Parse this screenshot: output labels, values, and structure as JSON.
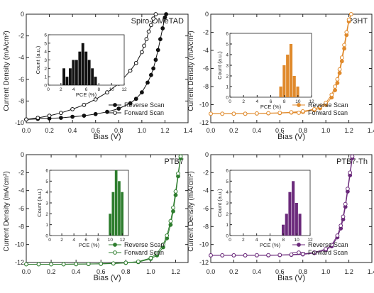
{
  "figure": {
    "panels": [
      {
        "title": "Spiro-OMeTAD",
        "color": "#111111",
        "chart_data": {
          "type": "line",
          "xlabel": "Bias (V)",
          "ylabel": "Current Density (mA/cm²)",
          "xlim": [
            0.0,
            1.4
          ],
          "ylim": [
            -10,
            0
          ],
          "y_inverted": true,
          "x_ticks": [
            "0.0",
            "0.2",
            "0.4",
            "0.6",
            "0.8",
            "1.0",
            "1.2",
            "1.4"
          ],
          "y_ticks": [
            "0",
            "-2",
            "-4",
            "-6",
            "-8",
            "-10"
          ],
          "legend_position": "bottom-right",
          "series": [
            {
              "name": "Reverse Scan",
              "marker": "filled-circle",
              "x": [
                0.0,
                0.1,
                0.2,
                0.3,
                0.4,
                0.5,
                0.6,
                0.7,
                0.8,
                0.9,
                0.95,
                1.0,
                1.05,
                1.08,
                1.1,
                1.12,
                1.14,
                1.16,
                1.18,
                1.2,
                1.21
              ],
              "y": [
                -9.7,
                -9.65,
                -9.6,
                -9.55,
                -9.45,
                -9.35,
                -9.2,
                -9.0,
                -8.7,
                -8.2,
                -7.8,
                -7.2,
                -6.3,
                -5.6,
                -5.0,
                -4.2,
                -3.3,
                -2.3,
                -1.3,
                -0.3,
                0.0
              ]
            },
            {
              "name": "Forward Scan",
              "marker": "open-circle",
              "x": [
                0.0,
                0.1,
                0.2,
                0.3,
                0.4,
                0.5,
                0.6,
                0.7,
                0.8,
                0.9,
                0.95,
                1.0,
                1.02,
                1.04,
                1.06,
                1.08,
                1.1,
                1.12
              ],
              "y": [
                -9.7,
                -9.55,
                -9.35,
                -9.1,
                -8.75,
                -8.35,
                -7.85,
                -7.2,
                -6.4,
                -5.2,
                -4.5,
                -3.5,
                -2.9,
                -2.3,
                -1.6,
                -1.0,
                -0.4,
                0.0
              ]
            }
          ],
          "inset": {
            "type": "bar",
            "xlabel": "PCE (%)",
            "ylabel": "Count (a.u.)",
            "xlim": [
              0,
              12
            ],
            "ylim": [
              0,
              6
            ],
            "x_ticks": [
              "0",
              "2",
              "4",
              "6",
              "8",
              "10",
              "12"
            ],
            "y_ticks": [
              "0",
              "1",
              "2",
              "3",
              "4",
              "5",
              "6"
            ],
            "bar_width": 0.5,
            "bins": [
              2.5,
              3,
              3.5,
              4,
              4.5,
              5,
              5.5,
              6,
              6.5,
              7,
              7.5,
              8
            ],
            "values": [
              2,
              1,
              2,
              3,
              3,
              4,
              5,
              4,
              3,
              2,
              1,
              0
            ]
          }
        }
      },
      {
        "title": "P3HT",
        "color": "#e08a2c",
        "chart_data": {
          "type": "line",
          "xlabel": "Bias (V)",
          "ylabel": "Current Density (mA/cm²)",
          "xlim": [
            0.0,
            1.4
          ],
          "ylim": [
            -12,
            0
          ],
          "y_inverted": true,
          "x_ticks": [
            "0.0",
            "0.2",
            "0.4",
            "0.6",
            "0.8",
            "1.0",
            "1.2",
            "1.4"
          ],
          "y_ticks": [
            "0",
            "-2",
            "-4",
            "-6",
            "-8",
            "-10",
            "-12"
          ],
          "legend_position": "bottom-right",
          "series": [
            {
              "name": "Reverse Scan",
              "marker": "filled-circle",
              "x": [
                0.0,
                0.1,
                0.2,
                0.3,
                0.4,
                0.5,
                0.6,
                0.7,
                0.8,
                0.9,
                0.95,
                1.0,
                1.05,
                1.08,
                1.1,
                1.12,
                1.14,
                1.16,
                1.18,
                1.2,
                1.22
              ],
              "y": [
                -11.0,
                -11.0,
                -11.0,
                -11.0,
                -10.98,
                -10.96,
                -10.93,
                -10.88,
                -10.8,
                -10.6,
                -10.4,
                -10.0,
                -9.2,
                -8.4,
                -7.6,
                -6.5,
                -5.2,
                -3.8,
                -2.3,
                -0.8,
                0.0
              ]
            },
            {
              "name": "Forward Scan",
              "marker": "open-circle",
              "x": [
                0.0,
                0.1,
                0.2,
                0.3,
                0.4,
                0.5,
                0.6,
                0.7,
                0.8,
                0.9,
                0.95,
                1.0,
                1.05,
                1.08,
                1.1,
                1.12,
                1.14,
                1.16,
                1.18,
                1.2,
                1.22
              ],
              "y": [
                -11.0,
                -11.0,
                -11.0,
                -11.0,
                -10.97,
                -10.94,
                -10.9,
                -10.84,
                -10.74,
                -10.5,
                -10.2,
                -9.8,
                -8.9,
                -8.0,
                -7.2,
                -6.1,
                -4.8,
                -3.4,
                -2.0,
                -0.6,
                0.0
              ]
            }
          ],
          "inset": {
            "type": "bar",
            "xlabel": "PCE (%)",
            "ylabel": "Count (a.u.)",
            "xlim": [
              0,
              12
            ],
            "ylim": [
              0,
              6
            ],
            "x_ticks": [
              "0",
              "2",
              "4",
              "6",
              "8",
              "10",
              "12"
            ],
            "y_ticks": [
              "0",
              "1",
              "2",
              "3",
              "4",
              "5",
              "6"
            ],
            "bar_width": 0.5,
            "bins": [
              7.5,
              8,
              8.5,
              9,
              9.5,
              10
            ],
            "values": [
              1,
              3,
              4,
              5,
              2,
              1
            ]
          }
        }
      },
      {
        "title": "PTB7",
        "color": "#2e7d2e",
        "chart_data": {
          "type": "line",
          "xlabel": "Bias (V)",
          "ylabel": "Current Density (mA/cm²)",
          "xlim": [
            0.0,
            1.3
          ],
          "ylim": [
            -12,
            0
          ],
          "y_inverted": true,
          "x_ticks": [
            "0.0",
            "0.2",
            "0.4",
            "0.6",
            "0.8",
            "1.0",
            "1.2"
          ],
          "y_ticks": [
            "0",
            "-2",
            "-4",
            "-6",
            "-8",
            "-10",
            "-12"
          ],
          "legend_position": "bottom-right",
          "series": [
            {
              "name": "Reverse Scan",
              "marker": "filled-circle",
              "x": [
                0.0,
                0.1,
                0.2,
                0.3,
                0.4,
                0.5,
                0.6,
                0.7,
                0.8,
                0.9,
                1.0,
                1.05,
                1.1,
                1.13,
                1.16,
                1.18,
                1.2,
                1.22,
                1.24
              ],
              "y": [
                -12.2,
                -12.2,
                -12.2,
                -12.2,
                -12.18,
                -12.17,
                -12.15,
                -12.12,
                -12.05,
                -11.95,
                -11.6,
                -11.2,
                -10.3,
                -9.3,
                -7.8,
                -6.3,
                -4.5,
                -2.4,
                -0.4
              ]
            },
            {
              "name": "Forward Scan",
              "marker": "open-circle",
              "x": [
                0.0,
                0.1,
                0.2,
                0.3,
                0.4,
                0.5,
                0.6,
                0.7,
                0.8,
                0.9,
                1.0,
                1.05,
                1.1,
                1.13,
                1.16,
                1.18,
                1.2,
                1.22,
                1.24
              ],
              "y": [
                -12.2,
                -12.2,
                -12.2,
                -12.2,
                -12.18,
                -12.16,
                -12.14,
                -12.1,
                -12.02,
                -11.9,
                -11.5,
                -11.0,
                -10.0,
                -9.0,
                -7.4,
                -5.9,
                -4.1,
                -2.1,
                -0.2
              ]
            }
          ],
          "inset": {
            "type": "bar",
            "xlabel": "PCE (%)",
            "ylabel": "Count (a.u.)",
            "xlim": [
              0,
              13
            ],
            "ylim": [
              0,
              6
            ],
            "x_ticks": [
              "0",
              "2",
              "4",
              "6",
              "8",
              "10",
              "12"
            ],
            "y_ticks": [
              "0",
              "1",
              "2",
              "3",
              "4",
              "5",
              "6"
            ],
            "bar_width": 0.5,
            "bins": [
              10,
              10.5,
              11,
              11.5,
              12
            ],
            "values": [
              2,
              4,
              6,
              5,
              4
            ]
          }
        }
      },
      {
        "title": "PTB7-Th",
        "color": "#6b2a7b",
        "chart_data": {
          "type": "line",
          "xlabel": "Bias (V)",
          "ylabel": "Current Density (mA/cm²)",
          "xlim": [
            0.0,
            1.4
          ],
          "ylim": [
            -12,
            0
          ],
          "y_inverted": true,
          "x_ticks": [
            "0.0",
            "0.2",
            "0.4",
            "0.6",
            "0.8",
            "1.0",
            "1.2",
            "1.4"
          ],
          "y_ticks": [
            "0",
            "-2",
            "-4",
            "-6",
            "-8",
            "-10",
            "-12"
          ],
          "legend_position": "bottom-right",
          "series": [
            {
              "name": "Reverse Scan",
              "marker": "filled-circle",
              "x": [
                0.0,
                0.1,
                0.2,
                0.3,
                0.4,
                0.5,
                0.6,
                0.7,
                0.8,
                0.9,
                1.0,
                1.05,
                1.1,
                1.13,
                1.15,
                1.17,
                1.19,
                1.21,
                1.23
              ],
              "y": [
                -11.2,
                -11.2,
                -11.2,
                -11.2,
                -11.2,
                -11.2,
                -11.18,
                -11.15,
                -11.1,
                -10.95,
                -10.6,
                -10.2,
                -9.2,
                -8.2,
                -7.2,
                -5.8,
                -4.1,
                -2.3,
                -0.4
              ]
            },
            {
              "name": "Forward Scan",
              "marker": "open-circle",
              "x": [
                0.0,
                0.1,
                0.2,
                0.3,
                0.4,
                0.5,
                0.6,
                0.7,
                0.8,
                0.9,
                1.0,
                1.05,
                1.1,
                1.13,
                1.15,
                1.17,
                1.19,
                1.21,
                1.23
              ],
              "y": [
                -11.2,
                -11.2,
                -11.2,
                -11.2,
                -11.19,
                -11.18,
                -11.16,
                -11.12,
                -11.05,
                -10.88,
                -10.5,
                -10.05,
                -9.0,
                -7.9,
                -6.9,
                -5.5,
                -3.8,
                -2.0,
                -0.2
              ]
            }
          ],
          "inset": {
            "type": "bar",
            "xlabel": "PCE (%)",
            "ylabel": "Count (a.u.)",
            "xlim": [
              0,
              12
            ],
            "ylim": [
              0,
              6
            ],
            "x_ticks": [
              "0",
              "2",
              "4",
              "6",
              "8",
              "10",
              "12"
            ],
            "y_ticks": [
              "0",
              "1",
              "2",
              "3",
              "4",
              "5",
              "6"
            ],
            "bar_width": 0.5,
            "bins": [
              8,
              8.5,
              9,
              9.5,
              10,
              10.5
            ],
            "values": [
              1,
              2,
              4,
              5,
              3,
              2
            ]
          }
        }
      }
    ]
  }
}
